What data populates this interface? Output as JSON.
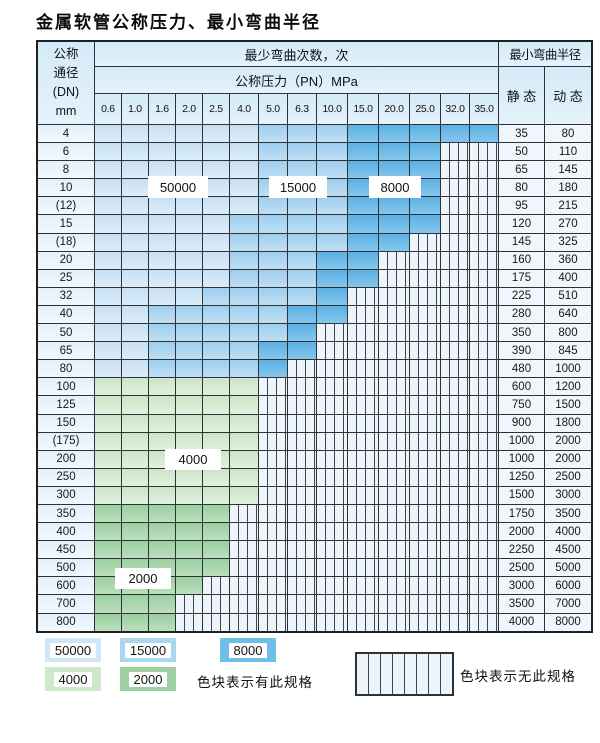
{
  "title": "金属软管公称压力、最小弯曲半径",
  "header": {
    "dn_lines": [
      "公称",
      "通径",
      "(DN)",
      "mm"
    ],
    "bend_times": "最少弯曲次数，次",
    "pressure": "公称压力（PN）MPa",
    "radius": "最小弯曲半径",
    "static_label": "静 态",
    "dynamic_label": "动 态"
  },
  "chart_data": {
    "type": "heatmap",
    "title": "金属软管公称压力、最小弯曲半径",
    "pn_columns_mpa": [
      "0.6",
      "1.0",
      "1.6",
      "2.0",
      "2.5",
      "4.0",
      "5.0",
      "6.3",
      "10.0",
      "15.0",
      "20.0",
      "25.0",
      "32.0",
      "35.0"
    ],
    "zone_codes": {
      "1": "50000",
      "2": "15000",
      "3": "8000",
      "4": "4000",
      "5": "2000",
      "0": "无此规格"
    },
    "rows": [
      {
        "dn": "4",
        "zones": "11111122233333",
        "static": "35",
        "dynamic": "80"
      },
      {
        "dn": "6",
        "zones": "11111122233300",
        "static": "50",
        "dynamic": "110"
      },
      {
        "dn": "8",
        "zones": "11111122233300",
        "static": "65",
        "dynamic": "145"
      },
      {
        "dn": "10",
        "zones": "11111122233300",
        "static": "80",
        "dynamic": "180"
      },
      {
        "dn": "(12)",
        "zones": "11111122233300",
        "static": "95",
        "dynamic": "215"
      },
      {
        "dn": "15",
        "zones": "11111222233300",
        "static": "120",
        "dynamic": "270"
      },
      {
        "dn": "(18)",
        "zones": "11111222233000",
        "static": "145",
        "dynamic": "325"
      },
      {
        "dn": "20",
        "zones": "11111222330000",
        "static": "160",
        "dynamic": "360"
      },
      {
        "dn": "25",
        "zones": "11111222330000",
        "static": "175",
        "dynamic": "400"
      },
      {
        "dn": "32",
        "zones": "11112222300000",
        "static": "225",
        "dynamic": "510"
      },
      {
        "dn": "40",
        "zones": "11222223300000",
        "static": "280",
        "dynamic": "640"
      },
      {
        "dn": "50",
        "zones": "11222223000000",
        "static": "350",
        "dynamic": "800"
      },
      {
        "dn": "65",
        "zones": "11222233000000",
        "static": "390",
        "dynamic": "845"
      },
      {
        "dn": "80",
        "zones": "11222230000000",
        "static": "480",
        "dynamic": "1000"
      },
      {
        "dn": "100",
        "zones": "44444400000000",
        "static": "600",
        "dynamic": "1200"
      },
      {
        "dn": "125",
        "zones": "44444400000000",
        "static": "750",
        "dynamic": "1500"
      },
      {
        "dn": "150",
        "zones": "44444400000000",
        "static": "900",
        "dynamic": "1800"
      },
      {
        "dn": "(175)",
        "zones": "44444400000000",
        "static": "1000",
        "dynamic": "2000"
      },
      {
        "dn": "200",
        "zones": "44444400000000",
        "static": "1000",
        "dynamic": "2000"
      },
      {
        "dn": "250",
        "zones": "44444400000000",
        "static": "1250",
        "dynamic": "2500"
      },
      {
        "dn": "300",
        "zones": "44444400000000",
        "static": "1500",
        "dynamic": "3000"
      },
      {
        "dn": "350",
        "zones": "55555000000000",
        "static": "1750",
        "dynamic": "3500"
      },
      {
        "dn": "400",
        "zones": "55555000000000",
        "static": "2000",
        "dynamic": "4000"
      },
      {
        "dn": "450",
        "zones": "55555000000000",
        "static": "2250",
        "dynamic": "4500"
      },
      {
        "dn": "500",
        "zones": "55555000000000",
        "static": "2500",
        "dynamic": "5000"
      },
      {
        "dn": "600",
        "zones": "55550000000000",
        "static": "3000",
        "dynamic": "6000"
      },
      {
        "dn": "700",
        "zones": "55500000000000",
        "static": "3500",
        "dynamic": "7000"
      },
      {
        "dn": "800",
        "zones": "55500000000000",
        "static": "4000",
        "dynamic": "8000"
      }
    ]
  },
  "zone_labels": [
    {
      "text": "50000"
    },
    {
      "text": "15000"
    },
    {
      "text": "8000"
    },
    {
      "text": "4000"
    },
    {
      "text": "2000"
    }
  ],
  "legend": {
    "items": [
      {
        "label": "50000",
        "color": "#cfe7f8"
      },
      {
        "label": "15000",
        "color": "#a8d7f0"
      },
      {
        "label": "8000",
        "color": "#70bfe9"
      },
      {
        "label": "4000",
        "color": "#cfe8cc"
      },
      {
        "label": "2000",
        "color": "#9ed0a4"
      }
    ],
    "has_text": "色块表示有此规格",
    "none_text": "色块表示无此规格"
  },
  "colors": {
    "zone_50000": "#cde4f6",
    "zone_15000": "#a2cfee",
    "zone_8000": "#67b5e6",
    "zone_4000": "#d5e9d0",
    "zone_2000": "#a3d2a6",
    "empty_cell": "#edf4fa",
    "grid_line": "#2d3237",
    "header_bg": "#dceef9"
  }
}
